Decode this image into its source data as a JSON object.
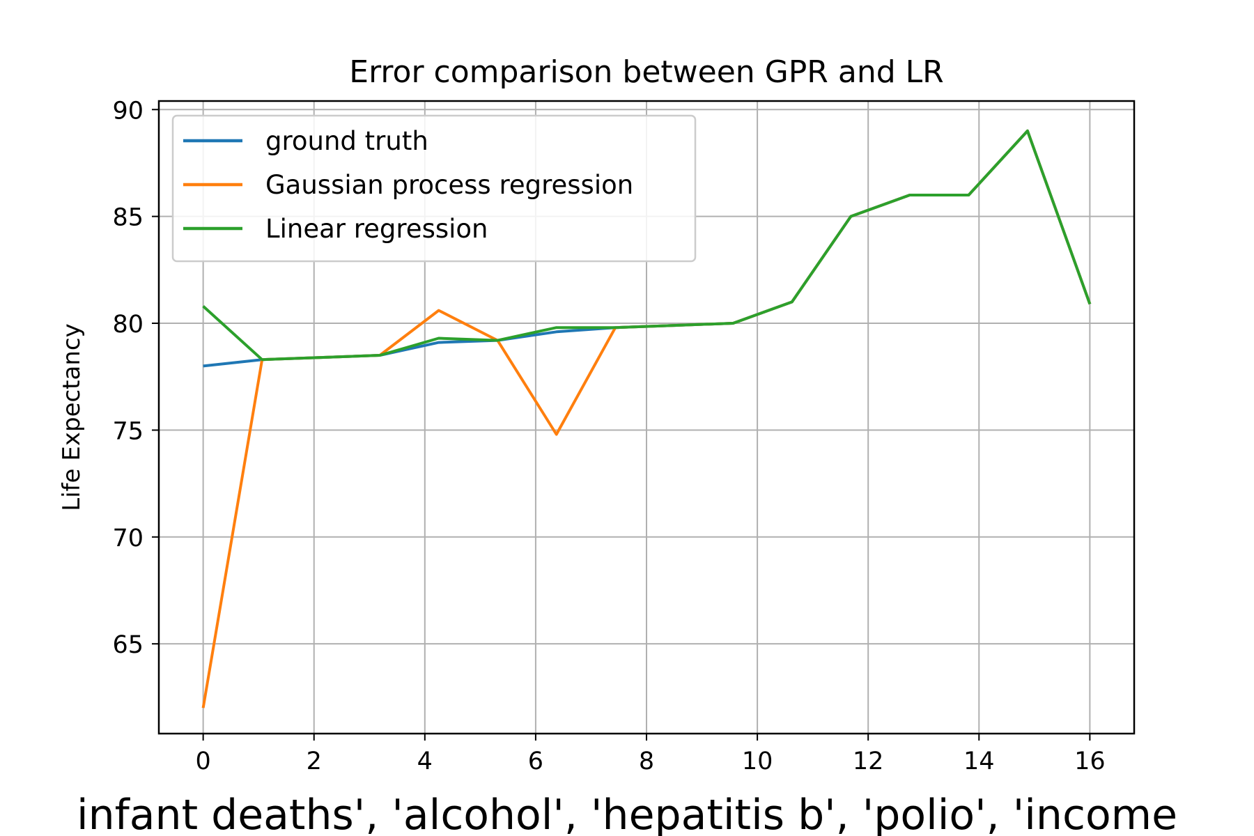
{
  "chart_data": {
    "type": "line",
    "title": "Error comparison between GPR and LR",
    "xlabel": "infant  deaths', 'alcohol', 'hepatitis  b', 'polio', 'income",
    "ylabel": "Life Expectancy",
    "xlim": [
      -0.8,
      16.8
    ],
    "ylim": [
      60.8,
      90.4
    ],
    "xticks": [
      0,
      2,
      4,
      6,
      8,
      10,
      12,
      14,
      16
    ],
    "yticks": [
      65,
      70,
      75,
      80,
      85,
      90
    ],
    "grid": true,
    "legend_position": "top-left",
    "x": [
      0,
      1.0625,
      2.125,
      3.1875,
      4.25,
      5.3125,
      6.375,
      7.4375,
      8.5,
      9.5625,
      10.625,
      11.6875,
      12.75,
      13.8125,
      14.875,
      16
    ],
    "series": [
      {
        "name": "ground truth",
        "color": "#1f77b4",
        "values": [
          78.0,
          78.3,
          78.4,
          78.5,
          79.1,
          79.2,
          79.6,
          79.8,
          79.9,
          80.0,
          81.0,
          85.0,
          86.0,
          86.0,
          89.0,
          80.9
        ]
      },
      {
        "name": "Gaussian process regression",
        "color": "#ff7f0e",
        "values": [
          62.0,
          78.3,
          78.4,
          78.5,
          80.6,
          79.2,
          74.8,
          79.8,
          79.9,
          80.0,
          81.0,
          85.0,
          86.0,
          86.0,
          89.0,
          80.9
        ]
      },
      {
        "name": "Linear regression",
        "color": "#2ca02c",
        "values": [
          80.8,
          78.3,
          78.4,
          78.5,
          79.3,
          79.2,
          79.8,
          79.8,
          79.9,
          80.0,
          81.0,
          85.0,
          86.0,
          86.0,
          89.0,
          80.9
        ]
      }
    ]
  }
}
